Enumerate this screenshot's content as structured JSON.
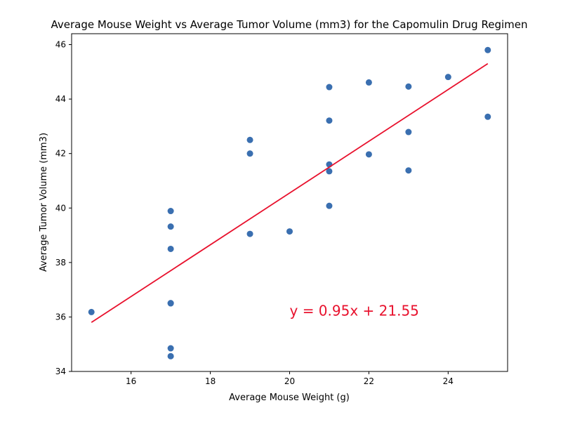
{
  "chart_data": {
    "type": "scatter",
    "title": "Average Mouse Weight vs Average Tumor Volume (mm3) for the Capomulin Drug Regimen",
    "xlabel": "Average Mouse Weight (g)",
    "ylabel": "Average Tumor Volume (mm3)",
    "xlim": [
      14.5,
      25.5
    ],
    "ylim": [
      34,
      46.4
    ],
    "xticks": [
      16,
      18,
      20,
      22,
      24
    ],
    "yticks": [
      34,
      36,
      38,
      40,
      42,
      44,
      46
    ],
    "grid": false,
    "points": [
      {
        "x": 15,
        "y": 36.18
      },
      {
        "x": 17,
        "y": 39.89
      },
      {
        "x": 17,
        "y": 39.32
      },
      {
        "x": 17,
        "y": 38.5
      },
      {
        "x": 17,
        "y": 36.51
      },
      {
        "x": 17,
        "y": 36.5
      },
      {
        "x": 17,
        "y": 34.85
      },
      {
        "x": 17,
        "y": 34.56
      },
      {
        "x": 19,
        "y": 42.5
      },
      {
        "x": 19,
        "y": 42.0
      },
      {
        "x": 19,
        "y": 39.05
      },
      {
        "x": 20,
        "y": 39.14
      },
      {
        "x": 21,
        "y": 44.44
      },
      {
        "x": 21,
        "y": 43.21
      },
      {
        "x": 21,
        "y": 41.6
      },
      {
        "x": 21,
        "y": 41.35
      },
      {
        "x": 21,
        "y": 40.08
      },
      {
        "x": 22,
        "y": 44.61
      },
      {
        "x": 22,
        "y": 41.97
      },
      {
        "x": 23,
        "y": 44.46
      },
      {
        "x": 23,
        "y": 42.79
      },
      {
        "x": 23,
        "y": 41.38
      },
      {
        "x": 24,
        "y": 44.81
      },
      {
        "x": 25,
        "y": 45.8
      },
      {
        "x": 25,
        "y": 43.35
      }
    ],
    "regression": {
      "slope": 0.95,
      "intercept": 21.55,
      "x_start": 15,
      "x_end": 25
    },
    "annotation": {
      "text": "y = 0.95x + 21.55",
      "x": 20,
      "y": 36.05
    },
    "colors": {
      "points": "#3a6fb0",
      "line": "#e8112d",
      "annotation": "#e8112d",
      "axes": "#000000"
    }
  }
}
